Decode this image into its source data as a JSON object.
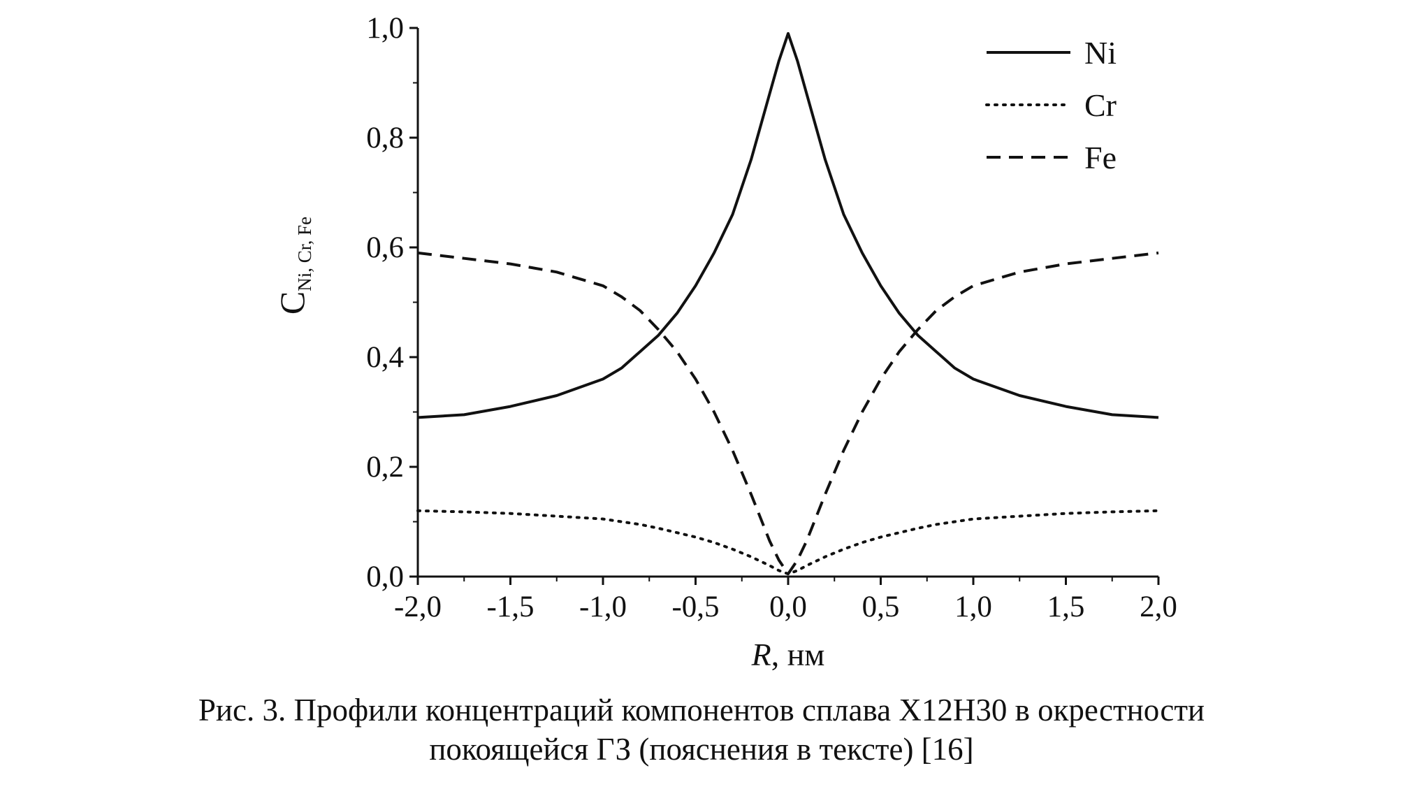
{
  "chart_data": {
    "type": "line",
    "xlabel_var": "R",
    "xlabel_unit": ", нм",
    "ylabel_main": "C",
    "ylabel_sub": "Ni, Cr, Fe",
    "xlim": [
      -2.0,
      2.0
    ],
    "ylim": [
      0.0,
      1.0
    ],
    "x_ticks": [
      "-2,0",
      "-1,5",
      "-1,0",
      "-0,5",
      "0,0",
      "0,5",
      "1,0",
      "1,5",
      "2,0"
    ],
    "y_ticks": [
      "0,0",
      "0,2",
      "0,4",
      "0,6",
      "0,8",
      "1,0"
    ],
    "legend_position": "top-right",
    "x": [
      -2.0,
      -1.75,
      -1.5,
      -1.25,
      -1.0,
      -0.9,
      -0.8,
      -0.7,
      -0.6,
      -0.5,
      -0.4,
      -0.3,
      -0.2,
      -0.1,
      -0.05,
      0.0,
      0.05,
      0.1,
      0.2,
      0.3,
      0.4,
      0.5,
      0.6,
      0.7,
      0.8,
      0.9,
      1.0,
      1.25,
      1.5,
      1.75,
      2.0
    ],
    "series": [
      {
        "name": "Ni",
        "style": "solid",
        "values": [
          0.29,
          0.295,
          0.31,
          0.33,
          0.36,
          0.38,
          0.41,
          0.44,
          0.48,
          0.53,
          0.59,
          0.66,
          0.76,
          0.88,
          0.94,
          0.99,
          0.94,
          0.88,
          0.76,
          0.66,
          0.59,
          0.53,
          0.48,
          0.44,
          0.41,
          0.38,
          0.36,
          0.33,
          0.31,
          0.295,
          0.29
        ]
      },
      {
        "name": "Cr",
        "style": "dotted",
        "values": [
          0.12,
          0.118,
          0.115,
          0.11,
          0.105,
          0.1,
          0.095,
          0.088,
          0.08,
          0.072,
          0.062,
          0.05,
          0.036,
          0.02,
          0.011,
          0.005,
          0.011,
          0.02,
          0.036,
          0.05,
          0.062,
          0.072,
          0.08,
          0.088,
          0.095,
          0.1,
          0.105,
          0.11,
          0.115,
          0.118,
          0.12
        ]
      },
      {
        "name": "Fe",
        "style": "dashed",
        "values": [
          0.59,
          0.58,
          0.57,
          0.555,
          0.53,
          0.51,
          0.485,
          0.45,
          0.41,
          0.36,
          0.3,
          0.23,
          0.15,
          0.065,
          0.03,
          0.005,
          0.03,
          0.065,
          0.15,
          0.23,
          0.3,
          0.36,
          0.41,
          0.45,
          0.485,
          0.51,
          0.53,
          0.555,
          0.57,
          0.58,
          0.59
        ]
      }
    ]
  },
  "caption": {
    "line1": "Рис. 3. Профили концентраций компонентов сплава Х12Н30 в окрестности",
    "line2": "покоящейся ГЗ (пояснения в тексте) [16]"
  },
  "colors": {
    "ink": "#111111",
    "background": "#ffffff"
  }
}
